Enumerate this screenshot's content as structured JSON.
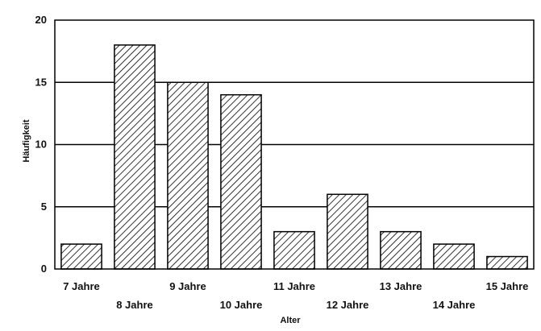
{
  "chart_data": {
    "type": "bar",
    "title": "",
    "xlabel": "Alter",
    "ylabel": "Häufigkeit",
    "categories": [
      "7 Jahre",
      "8 Jahre",
      "9 Jahre",
      "10 Jahre",
      "11 Jahre",
      "12 Jahre",
      "13 Jahre",
      "14 Jahre",
      "15 Jahre"
    ],
    "values": [
      2,
      18,
      15,
      14,
      3,
      6,
      3,
      2,
      1
    ],
    "ylim": [
      0,
      20
    ],
    "yticks": [
      0,
      5,
      10,
      15,
      20
    ],
    "grid": true,
    "bar_fill": "hatched",
    "colors": {
      "bar_stroke": "#000000",
      "hatch": "#000000",
      "background": "#ffffff"
    }
  }
}
